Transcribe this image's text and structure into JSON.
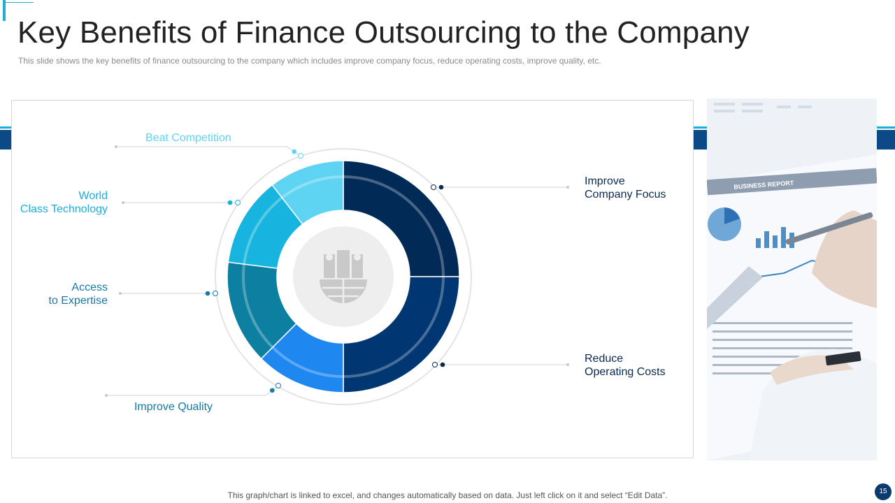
{
  "slide": {
    "title": "Key Benefits of Finance Outsourcing to the Company",
    "subtitle": "This slide shows the key benefits of finance outsourcing to the company which includes improve  company focus, reduce operating costs, improve  quality, etc.",
    "footer_note": "This graph/chart is linked to excel,  and changes automatically based on data. Just left click on it and select “Edit Data”.",
    "page_number": "15"
  },
  "photo": {
    "report_heading": "BUSINESS REPORT"
  },
  "colors": {
    "title": "#222222",
    "accent": "#1ab0d8",
    "band": "#0b4a87"
  },
  "icons": {
    "center": "building-globe-icon"
  },
  "chart_data": {
    "type": "pie",
    "variant": "doughnut",
    "title": "",
    "categories": [
      "Improve Company Focus",
      "Reduce Operating Costs",
      "Improve Quality",
      "Access to Expertise",
      "World Class Technology",
      "Beat Competition"
    ],
    "display_labels": [
      "Improve\nCompany Focus",
      "Reduce\nOperating Costs",
      "Improve  Quality",
      "Access\nto Expertise",
      "World\nClass Technology",
      "Beat Competition"
    ],
    "values": [
      25,
      25,
      12.5,
      14.5,
      12.5,
      10.5
    ],
    "colors": [
      "#022a57",
      "#003672",
      "#1e87f0",
      "#0d7fa0",
      "#16b4de",
      "#5fd4f2"
    ],
    "label_colors": [
      "#0b2a4e",
      "#0b2a4e",
      "#1679a6",
      "#1679a6",
      "#1ab0d8",
      "#5fd4f2"
    ],
    "legend": "none"
  }
}
